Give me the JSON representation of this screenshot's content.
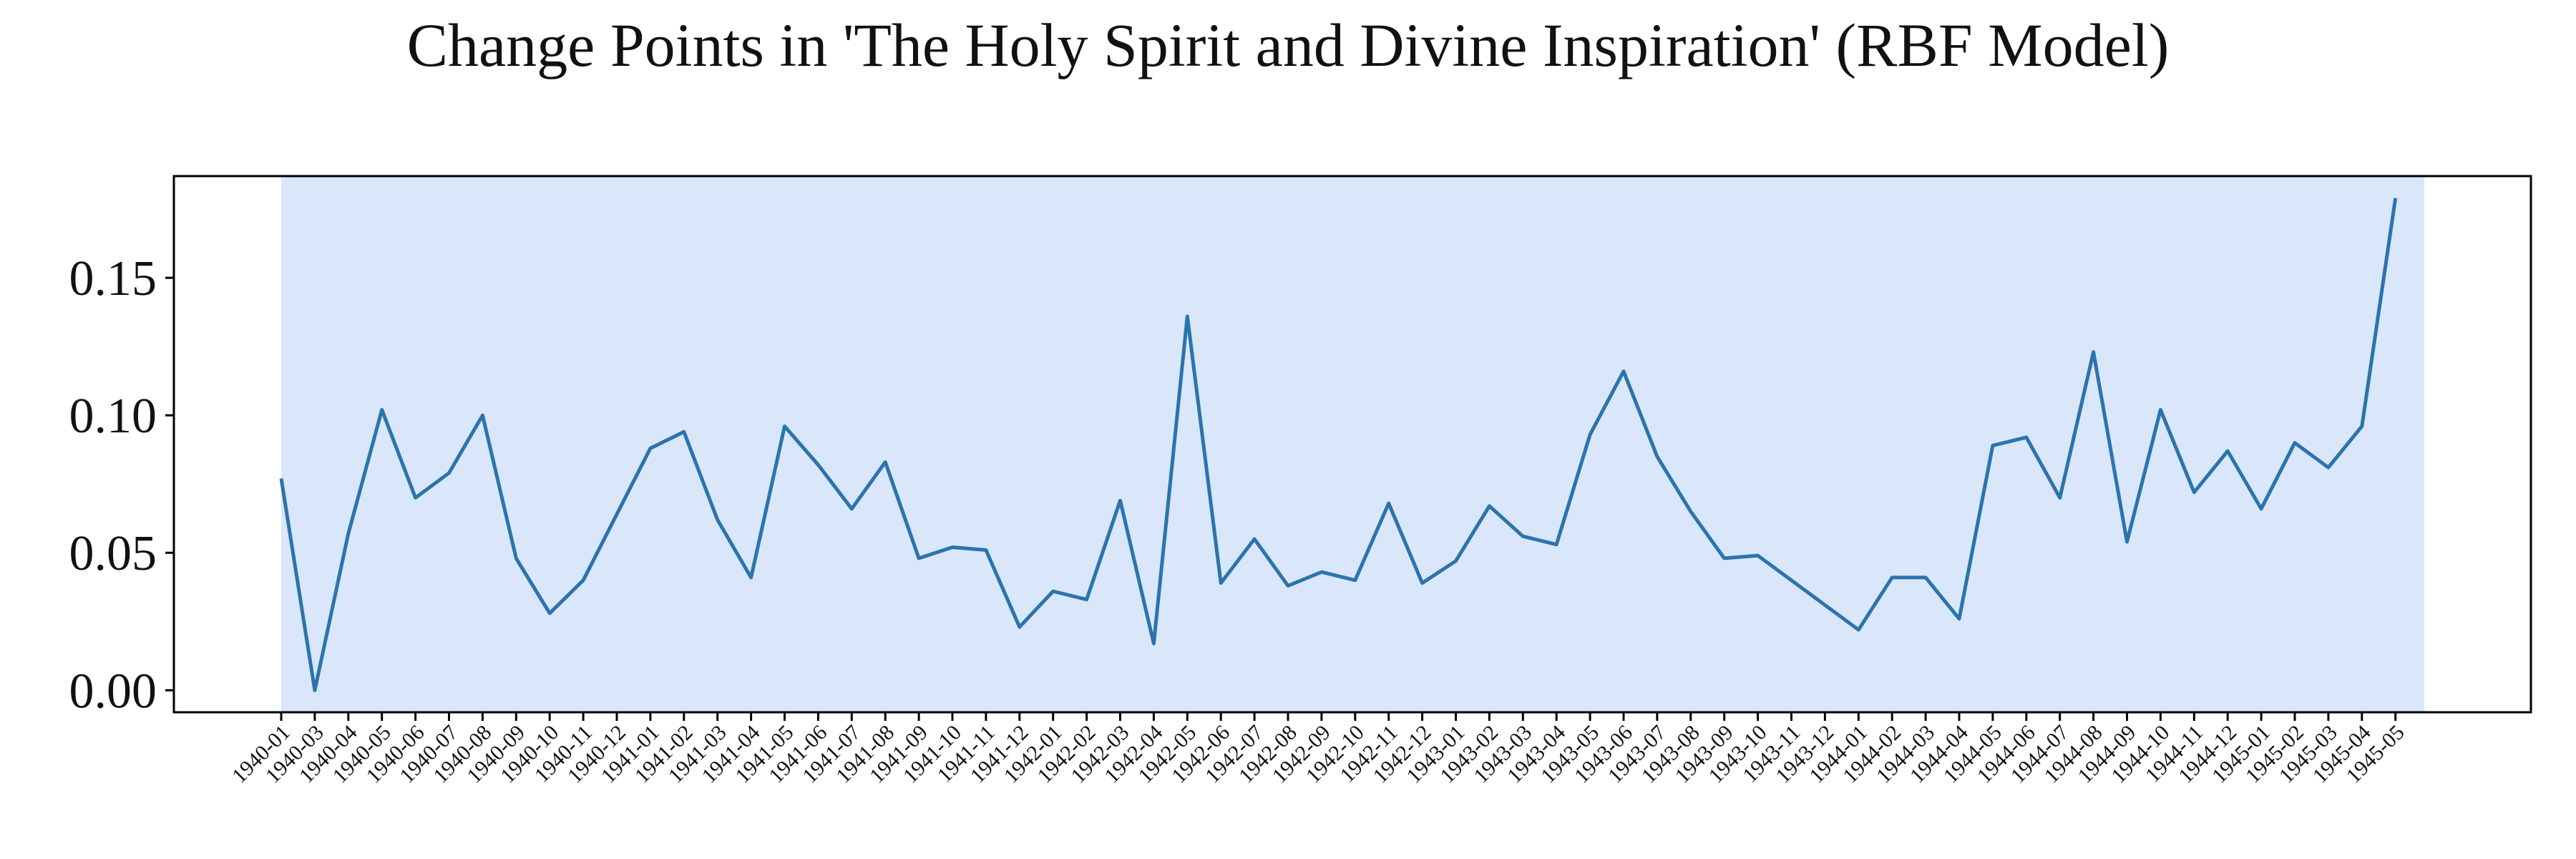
{
  "chart_data": {
    "type": "line",
    "title": "Change Points in 'The Holy Spirit and Divine Inspiration' (RBF Model)",
    "xlabel": "",
    "ylabel": "",
    "ylim": [
      -0.008,
      0.187
    ],
    "yticks": [
      "0.00",
      "0.05",
      "0.10",
      "0.15"
    ],
    "ytick_values": [
      0.0,
      0.05,
      0.1,
      0.15
    ],
    "grid": false,
    "highlight_region": {
      "from": "1940-01",
      "to": "1945-05+",
      "color": "#dae6fa"
    },
    "line_color": "#2a74ad",
    "x": [
      "1940-01",
      "1940-03",
      "1940-04",
      "1940-05",
      "1940-06",
      "1940-07",
      "1940-08",
      "1940-09",
      "1940-10",
      "1940-11",
      "1940-12",
      "1941-01",
      "1941-02",
      "1941-03",
      "1941-04",
      "1941-05",
      "1941-06",
      "1941-07",
      "1941-08",
      "1941-09",
      "1941-10",
      "1941-11",
      "1941-12",
      "1942-01",
      "1942-02",
      "1942-03",
      "1942-04",
      "1942-05",
      "1942-06",
      "1942-07",
      "1942-08",
      "1942-09",
      "1942-10",
      "1942-11",
      "1942-12",
      "1943-01",
      "1943-02",
      "1943-03",
      "1943-04",
      "1943-05",
      "1943-06",
      "1943-07",
      "1943-08",
      "1943-09",
      "1943-10",
      "1943-11",
      "1943-12",
      "1944-01",
      "1944-02",
      "1944-03",
      "1944-04",
      "1944-05",
      "1944-06",
      "1944-07",
      "1944-08",
      "1944-09",
      "1944-10",
      "1944-11",
      "1944-12",
      "1945-01",
      "1945-02",
      "1945-03",
      "1945-04",
      "1945-05"
    ],
    "series": [
      {
        "values": [
          0.077,
          0.0,
          0.057,
          0.102,
          0.07,
          0.079,
          0.1,
          0.048,
          0.028,
          0.04,
          0.064,
          0.088,
          0.094,
          0.062,
          0.041,
          0.096,
          0.082,
          0.066,
          0.083,
          0.048,
          0.052,
          0.051,
          0.023,
          0.036,
          0.033,
          0.069,
          0.017,
          0.136,
          0.039,
          0.055,
          0.038,
          0.043,
          0.04,
          0.068,
          0.039,
          0.047,
          0.067,
          0.056,
          0.053,
          0.093,
          0.116,
          0.085,
          0.065,
          0.048,
          0.049,
          0.04,
          0.031,
          0.022,
          0.041,
          0.041,
          0.026,
          0.089,
          0.092,
          0.07,
          0.123,
          0.054,
          0.102,
          0.072,
          0.087,
          0.066,
          0.09,
          0.081,
          0.096,
          0.179
        ]
      }
    ]
  }
}
